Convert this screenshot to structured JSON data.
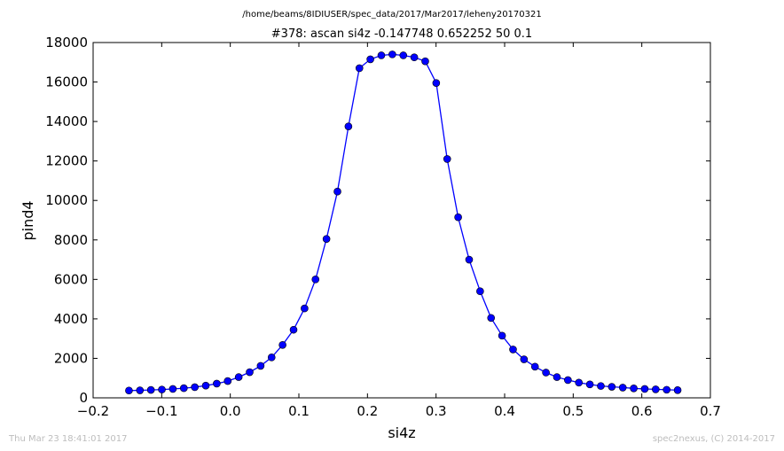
{
  "chart_data": {
    "type": "line",
    "suptitle": "/home/beams/8IDIUSER/spec_data/2017/Mar2017/leheny20170321",
    "title": "#378: ascan  si4z -0.147748 0.652252  50 0.1",
    "xlabel": "si4z",
    "ylabel": "pind4",
    "xlim": [
      -0.2,
      0.7
    ],
    "ylim": [
      0,
      18000
    ],
    "xticks": [
      -0.2,
      -0.1,
      0.0,
      0.1,
      0.2,
      0.3,
      0.4,
      0.5,
      0.6,
      0.7
    ],
    "xtick_labels": [
      "−0.2",
      "−0.1",
      "0.0",
      "0.1",
      "0.2",
      "0.3",
      "0.4",
      "0.5",
      "0.6",
      "0.7"
    ],
    "yticks": [
      0,
      2000,
      4000,
      6000,
      8000,
      10000,
      12000,
      14000,
      16000,
      18000
    ],
    "ytick_labels": [
      "0",
      "2000",
      "4000",
      "6000",
      "8000",
      "10000",
      "12000",
      "14000",
      "16000",
      "18000"
    ],
    "grid": false,
    "line_color": "#0000ff",
    "marker_color": "#0000ff",
    "series": [
      {
        "x": [
          -0.147748,
          -0.131748,
          -0.115748,
          -0.099748,
          -0.083748,
          -0.067748,
          -0.051748,
          -0.035748,
          -0.019748,
          -0.003748,
          0.012252,
          0.028252,
          0.044252,
          0.060252,
          0.076252,
          0.092252,
          0.108252,
          0.124252,
          0.140252,
          0.156252,
          0.172252,
          0.188252,
          0.204252,
          0.220252,
          0.236252,
          0.252252,
          0.268252,
          0.284252,
          0.300252,
          0.316252,
          0.332252,
          0.348252,
          0.364252,
          0.380252,
          0.396252,
          0.412252,
          0.428252,
          0.444252,
          0.460252,
          0.476252,
          0.492252,
          0.508252,
          0.524252,
          0.540252,
          0.556252,
          0.572252,
          0.588252,
          0.604252,
          0.620252,
          0.636252,
          0.652252
        ],
        "y": [
          370,
          380,
          400,
          420,
          450,
          490,
          540,
          620,
          720,
          850,
          1050,
          1300,
          1620,
          2050,
          2680,
          3450,
          4530,
          6000,
          8050,
          10450,
          13750,
          16700,
          17150,
          17350,
          17400,
          17350,
          17250,
          17050,
          15950,
          12100,
          9150,
          7000,
          5400,
          4050,
          3150,
          2450,
          1950,
          1580,
          1280,
          1050,
          900,
          770,
          680,
          600,
          560,
          520,
          480,
          450,
          430,
          410,
          390
        ]
      }
    ]
  },
  "footer": {
    "timestamp": "Thu Mar 23 18:41:01 2017",
    "credit": "spec2nexus, (C) 2014-2017"
  }
}
